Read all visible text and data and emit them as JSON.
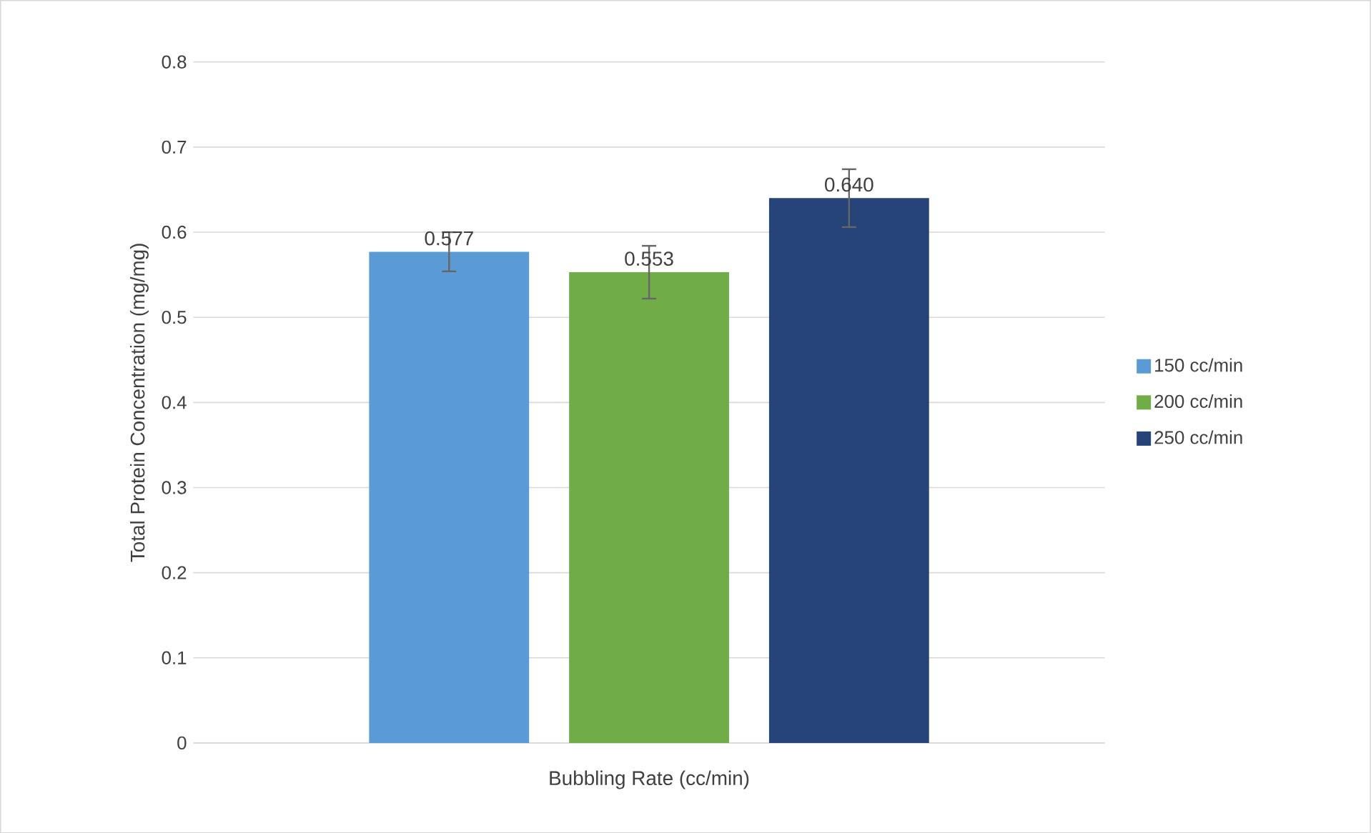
{
  "chart_data": {
    "type": "bar",
    "xlabel": "Bubbling Rate (cc/min)",
    "ylabel": "Total Protein Concentration (mg/mg)",
    "categories": [
      null
    ],
    "series": [
      {
        "name": "150 cc/min",
        "color": "#5b9bd5",
        "values": [
          0.577
        ],
        "errors": [
          0.023
        ],
        "value_labels": [
          "0.577"
        ]
      },
      {
        "name": "200 cc/min",
        "color": "#70ad47",
        "values": [
          0.553
        ],
        "errors": [
          0.031
        ],
        "value_labels": [
          "0.553"
        ]
      },
      {
        "name": "250 cc/min",
        "color": "#264478",
        "values": [
          0.64
        ],
        "errors": [
          0.034
        ],
        "value_labels": [
          "0.640"
        ]
      }
    ],
    "ylim": [
      0,
      0.8
    ],
    "yticks": [
      0,
      0.1,
      0.2,
      0.3,
      0.4,
      0.5,
      0.6,
      0.7,
      0.8
    ],
    "grid": "y",
    "legend": "right"
  }
}
